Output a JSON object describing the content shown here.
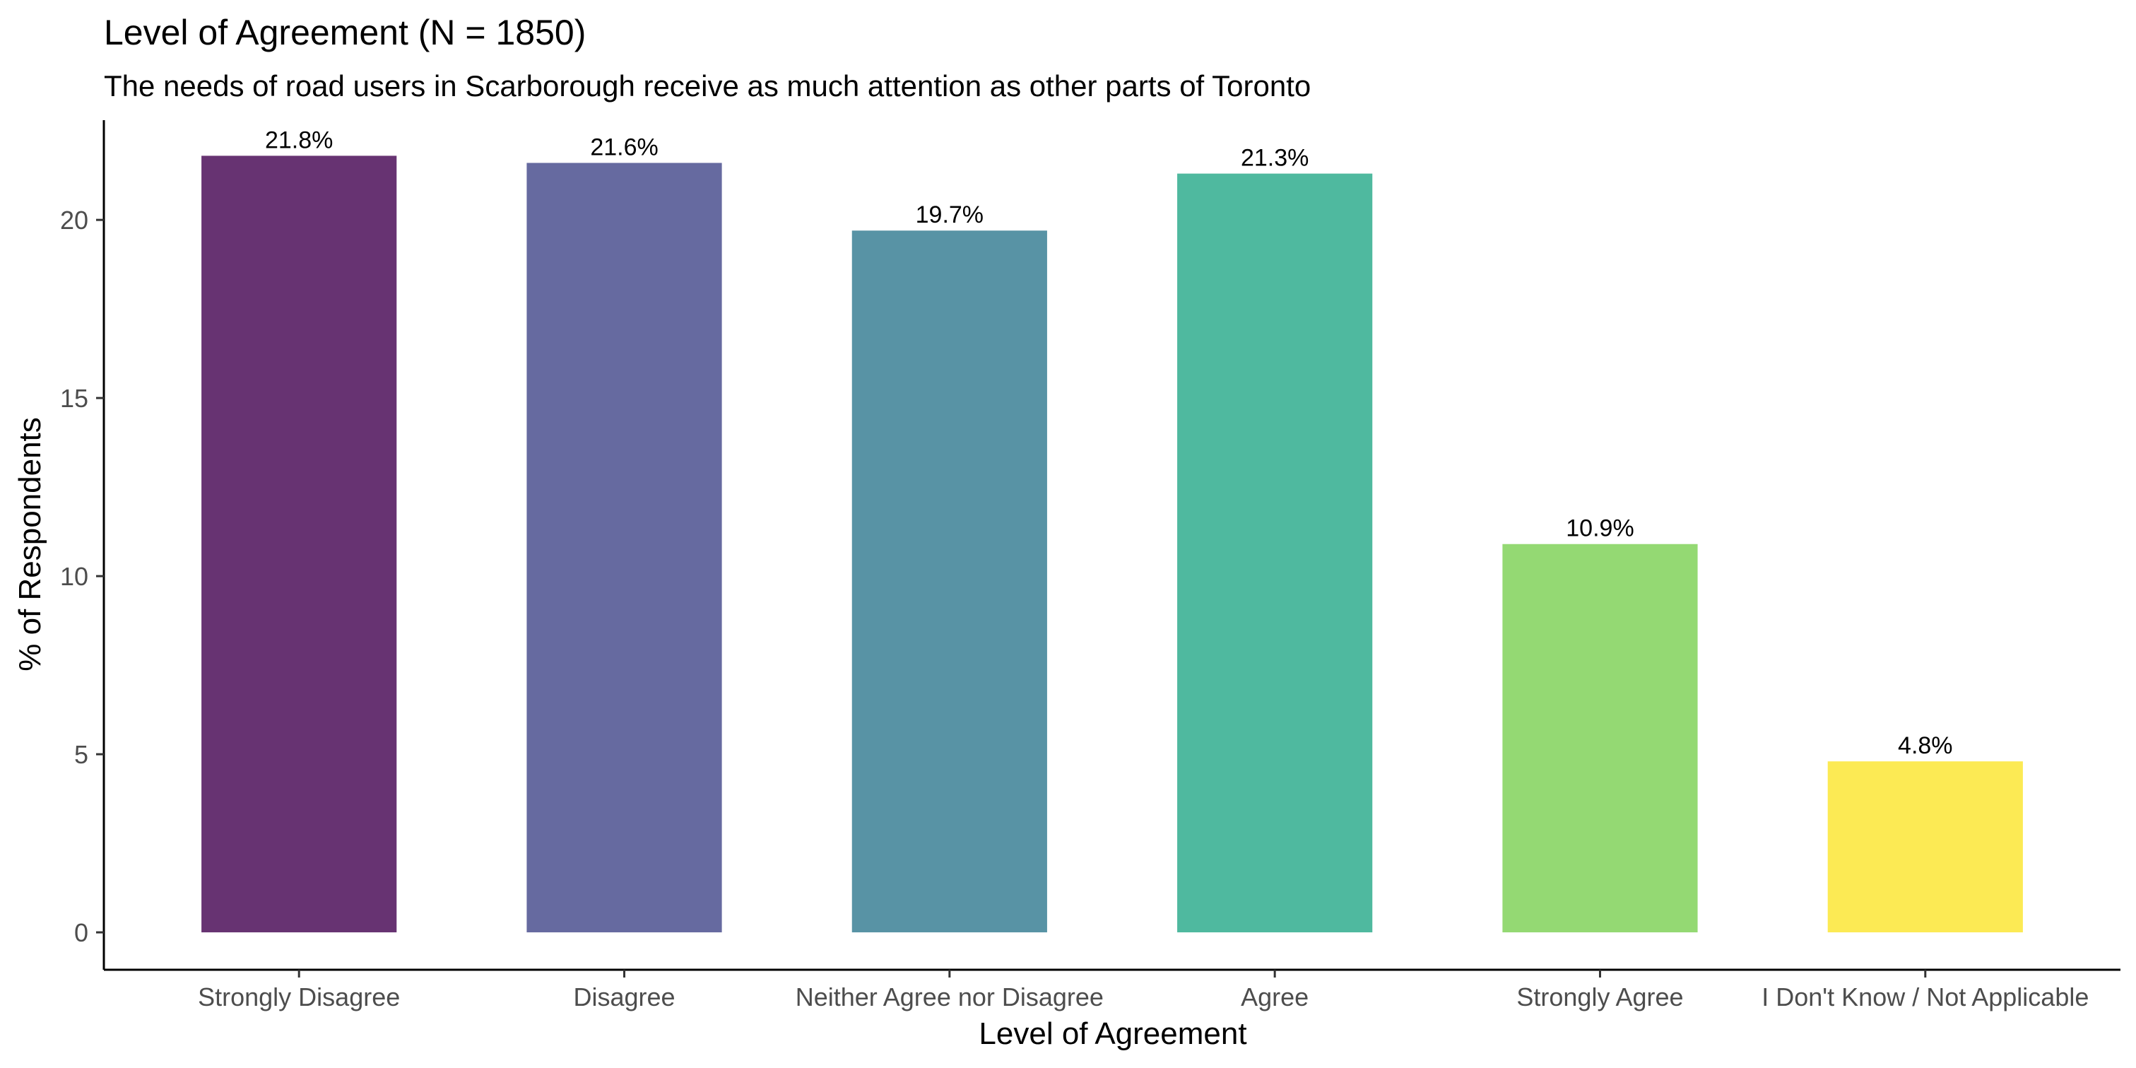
{
  "chart_data": {
    "type": "bar",
    "title": "Level of Agreement (N = 1850)",
    "subtitle": "The needs of road users in Scarborough receive as much attention as other parts of Toronto",
    "xlabel": "Level of Agreement",
    "ylabel": "% of Respondents",
    "categories": [
      "Strongly Disagree",
      "Disagree",
      "Neither Agree nor Disagree",
      "Agree",
      "Strongly Agree",
      "I Don't Know / Not Applicable"
    ],
    "values": [
      21.8,
      21.6,
      19.7,
      21.3,
      10.9,
      4.8
    ],
    "data_labels": [
      "21.8%",
      "21.6%",
      "19.7%",
      "21.3%",
      "10.9%",
      "4.8%"
    ],
    "colors": [
      "#673372",
      "#666AA0",
      "#5893A5",
      "#4FB99F",
      "#94D973",
      "#FCEA54"
    ],
    "y_ticks": [
      0,
      5,
      10,
      15,
      20
    ],
    "ylim": [
      -1.05,
      22.8
    ],
    "grid": false,
    "legend": "none"
  }
}
